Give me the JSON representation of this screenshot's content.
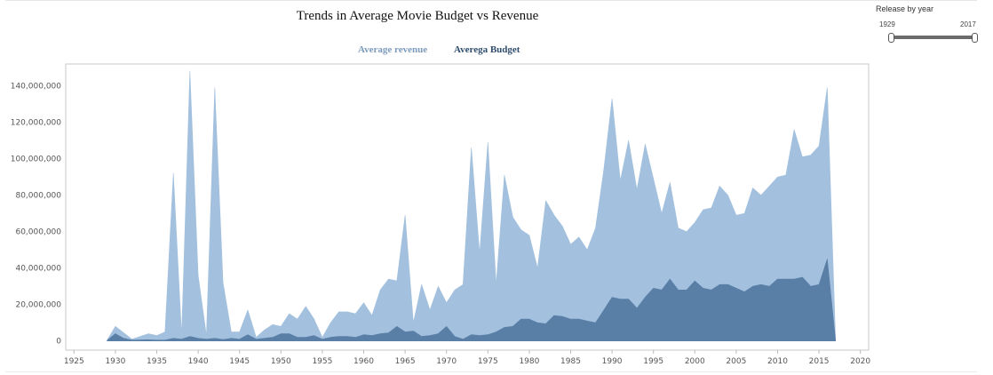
{
  "chart_data": {
    "type": "area",
    "title": "Trends in Average Movie Budget vs Revenue",
    "xlabel": "",
    "ylabel": "",
    "xlim": [
      1924,
      2021
    ],
    "ylim": [
      -5000000,
      152000000
    ],
    "x_ticks": [
      1925,
      1930,
      1935,
      1940,
      1945,
      1950,
      1955,
      1960,
      1965,
      1970,
      1975,
      1980,
      1985,
      1990,
      1995,
      2000,
      2005,
      2010,
      2015,
      2020
    ],
    "y_ticks": [
      0,
      20000000,
      40000000,
      60000000,
      80000000,
      100000000,
      120000000,
      140000000
    ],
    "y_tick_labels": [
      "0",
      "20,000,000",
      "40,000,000",
      "60,000,000",
      "80,000,000",
      "100,000,000",
      "120,000,000",
      "140,000,000"
    ],
    "grid": false,
    "legend_position": "top-center",
    "series": [
      {
        "name": "Average revenue",
        "color": "#a3c1de",
        "x": [
          1929,
          1930,
          1932,
          1934,
          1935,
          1936,
          1937,
          1938,
          1939,
          1940,
          1941,
          1942,
          1943,
          1944,
          1945,
          1946,
          1947,
          1948,
          1949,
          1950,
          1951,
          1952,
          1953,
          1954,
          1955,
          1956,
          1957,
          1958,
          1959,
          1960,
          1961,
          1962,
          1963,
          1964,
          1965,
          1966,
          1967,
          1968,
          1969,
          1970,
          1971,
          1972,
          1973,
          1974,
          1975,
          1976,
          1977,
          1978,
          1979,
          1980,
          1981,
          1982,
          1983,
          1984,
          1985,
          1986,
          1987,
          1988,
          1989,
          1990,
          1991,
          1992,
          1993,
          1994,
          1995,
          1996,
          1997,
          1998,
          1999,
          2000,
          2001,
          2002,
          2003,
          2004,
          2005,
          2006,
          2007,
          2008,
          2009,
          2010,
          2011,
          2012,
          2013,
          2014,
          2015,
          2016,
          2017
        ],
        "values": [
          500000,
          8000000,
          1000000,
          4000000,
          3000000,
          5000000,
          92000000,
          3000000,
          148000000,
          36000000,
          3000000,
          139000000,
          32000000,
          5000000,
          5000000,
          17000000,
          2000000,
          6000000,
          9000000,
          8000000,
          15000000,
          12000000,
          19000000,
          12000000,
          2000000,
          10000000,
          16000000,
          16000000,
          15000000,
          21000000,
          14000000,
          28000000,
          34000000,
          33000000,
          69000000,
          10000000,
          31000000,
          17000000,
          30000000,
          21000000,
          28000000,
          31000000,
          106000000,
          48000000,
          109000000,
          31000000,
          91000000,
          68000000,
          61000000,
          58000000,
          40000000,
          77000000,
          69000000,
          63000000,
          53000000,
          57000000,
          50000000,
          62000000,
          94000000,
          133000000,
          88000000,
          110000000,
          83000000,
          108000000,
          89000000,
          70000000,
          87000000,
          62000000,
          60000000,
          65000000,
          72000000,
          73000000,
          85000000,
          80000000,
          69000000,
          70000000,
          84000000,
          80000000,
          85000000,
          90000000,
          91000000,
          116000000,
          101000000,
          102000000,
          107000000,
          139000000,
          1000000
        ]
      },
      {
        "name": "Averega Budget",
        "color": "#5a7fa6",
        "x": [
          1929,
          1930,
          1931,
          1932,
          1934,
          1935,
          1936,
          1937,
          1938,
          1939,
          1940,
          1941,
          1942,
          1943,
          1944,
          1945,
          1946,
          1947,
          1948,
          1949,
          1950,
          1951,
          1952,
          1953,
          1954,
          1955,
          1956,
          1957,
          1958,
          1959,
          1960,
          1961,
          1962,
          1963,
          1964,
          1965,
          1966,
          1967,
          1968,
          1969,
          1970,
          1971,
          1972,
          1973,
          1974,
          1975,
          1976,
          1977,
          1978,
          1979,
          1980,
          1981,
          1982,
          1983,
          1984,
          1985,
          1986,
          1987,
          1988,
          1989,
          1990,
          1991,
          1992,
          1993,
          1994,
          1995,
          1996,
          1997,
          1998,
          1999,
          2000,
          2001,
          2002,
          2003,
          2004,
          2005,
          2006,
          2007,
          2008,
          2009,
          2010,
          2011,
          2012,
          2013,
          2014,
          2015,
          2016,
          2017
        ],
        "values": [
          300000,
          4000000,
          1500000,
          500000,
          700000,
          500000,
          500000,
          1500000,
          1000000,
          2500000,
          1500000,
          1000000,
          1500000,
          800000,
          1500000,
          1000000,
          3500000,
          1000000,
          1500000,
          2000000,
          4000000,
          4000000,
          2000000,
          2000000,
          3000000,
          1000000,
          2000000,
          2500000,
          2500000,
          2000000,
          3500000,
          3000000,
          4000000,
          4500000,
          8000000,
          5000000,
          5500000,
          2500000,
          3000000,
          4000000,
          8000000,
          2500000,
          1000000,
          3500000,
          3000000,
          3500000,
          5000000,
          7500000,
          8000000,
          12000000,
          12000000,
          10000000,
          9500000,
          14000000,
          13500000,
          12000000,
          12000000,
          11000000,
          10000000,
          17000000,
          24000000,
          23000000,
          23000000,
          18000000,
          24000000,
          29000000,
          28000000,
          34000000,
          28000000,
          28000000,
          33000000,
          29000000,
          28000000,
          31000000,
          31000000,
          29000000,
          27000000,
          30000000,
          31000000,
          30000000,
          34000000,
          34000000,
          34000000,
          35000000,
          30000000,
          31000000,
          45000000,
          500000
        ]
      }
    ]
  },
  "legend": {
    "revenue_label": "Average revenue",
    "budget_label": "Averega Budget",
    "revenue_color": "#7c9bbd",
    "budget_color": "#2f4d6e"
  },
  "year_filter": {
    "title": "Release by year",
    "min_label": "1929",
    "max_label": "2017"
  }
}
